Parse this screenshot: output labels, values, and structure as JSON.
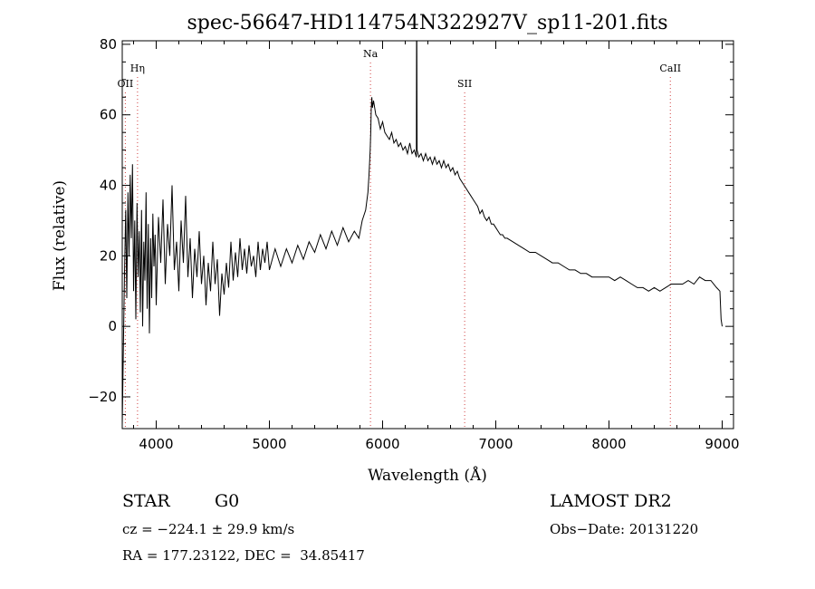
{
  "chart_data": {
    "type": "line",
    "title": "spec-56647-HD114754N322927V_sp11-201.fits",
    "xlabel": "Wavelength (Å)",
    "ylabel": "Flux (relative)",
    "xlim": [
      3700,
      9100
    ],
    "ylim": [
      -29,
      81
    ],
    "x_ticks": [
      4000,
      5000,
      6000,
      7000,
      8000,
      9000
    ],
    "x_tick_labels": [
      "4000",
      "5000",
      "6000",
      "7000",
      "8000",
      "9000"
    ],
    "y_ticks": [
      -20,
      0,
      20,
      40,
      60,
      80
    ],
    "y_tick_labels": [
      "−20",
      "0",
      "20",
      "40",
      "60",
      "80"
    ],
    "grid": false,
    "series": [
      {
        "color": "#000000",
        "points": [
          [
            3700,
            -28
          ],
          [
            3710,
            -5
          ],
          [
            3720,
            15
          ],
          [
            3730,
            33
          ],
          [
            3740,
            8
          ],
          [
            3750,
            38
          ],
          [
            3760,
            20
          ],
          [
            3770,
            43
          ],
          [
            3780,
            25
          ],
          [
            3790,
            46
          ],
          [
            3800,
            10
          ],
          [
            3810,
            30
          ],
          [
            3820,
            2
          ],
          [
            3830,
            35
          ],
          [
            3840,
            14
          ],
          [
            3850,
            27
          ],
          [
            3860,
            4
          ],
          [
            3870,
            33
          ],
          [
            3880,
            0
          ],
          [
            3890,
            24
          ],
          [
            3900,
            13
          ],
          [
            3910,
            38
          ],
          [
            3920,
            5
          ],
          [
            3930,
            29
          ],
          [
            3940,
            -2
          ],
          [
            3950,
            25
          ],
          [
            3960,
            8
          ],
          [
            3970,
            32
          ],
          [
            3980,
            17
          ],
          [
            3990,
            26
          ],
          [
            4000,
            6
          ],
          [
            4020,
            31
          ],
          [
            4040,
            18
          ],
          [
            4060,
            36
          ],
          [
            4080,
            12
          ],
          [
            4100,
            29
          ],
          [
            4120,
            20
          ],
          [
            4140,
            40
          ],
          [
            4160,
            16
          ],
          [
            4180,
            24
          ],
          [
            4200,
            10
          ],
          [
            4220,
            30
          ],
          [
            4240,
            18
          ],
          [
            4260,
            37
          ],
          [
            4280,
            14
          ],
          [
            4300,
            25
          ],
          [
            4320,
            8
          ],
          [
            4340,
            22
          ],
          [
            4360,
            14
          ],
          [
            4380,
            27
          ],
          [
            4400,
            12
          ],
          [
            4420,
            20
          ],
          [
            4440,
            6
          ],
          [
            4460,
            18
          ],
          [
            4480,
            10
          ],
          [
            4500,
            24
          ],
          [
            4520,
            12
          ],
          [
            4540,
            19
          ],
          [
            4560,
            3
          ],
          [
            4580,
            15
          ],
          [
            4600,
            9
          ],
          [
            4620,
            18
          ],
          [
            4640,
            11
          ],
          [
            4660,
            24
          ],
          [
            4680,
            13
          ],
          [
            4700,
            21
          ],
          [
            4720,
            14
          ],
          [
            4740,
            25
          ],
          [
            4760,
            16
          ],
          [
            4780,
            22
          ],
          [
            4800,
            15
          ],
          [
            4820,
            23
          ],
          [
            4840,
            17
          ],
          [
            4860,
            20
          ],
          [
            4880,
            14
          ],
          [
            4900,
            24
          ],
          [
            4920,
            16
          ],
          [
            4940,
            22
          ],
          [
            4960,
            18
          ],
          [
            4980,
            24
          ],
          [
            5000,
            16
          ],
          [
            5050,
            22
          ],
          [
            5100,
            17
          ],
          [
            5150,
            22
          ],
          [
            5200,
            18
          ],
          [
            5250,
            23
          ],
          [
            5300,
            19
          ],
          [
            5350,
            24
          ],
          [
            5400,
            21
          ],
          [
            5450,
            26
          ],
          [
            5500,
            22
          ],
          [
            5550,
            27
          ],
          [
            5600,
            23
          ],
          [
            5650,
            28
          ],
          [
            5700,
            24
          ],
          [
            5750,
            27
          ],
          [
            5790,
            25
          ],
          [
            5820,
            30
          ],
          [
            5850,
            33
          ],
          [
            5870,
            38
          ],
          [
            5880,
            43
          ],
          [
            5890,
            50
          ],
          [
            5895,
            55
          ],
          [
            5900,
            62
          ],
          [
            5905,
            65
          ],
          [
            5910,
            62
          ],
          [
            5920,
            64
          ],
          [
            5940,
            60
          ],
          [
            5960,
            59
          ],
          [
            5980,
            56
          ],
          [
            6000,
            58
          ],
          [
            6020,
            55
          ],
          [
            6040,
            54
          ],
          [
            6060,
            53
          ],
          [
            6080,
            55
          ],
          [
            6100,
            52
          ],
          [
            6120,
            53
          ],
          [
            6140,
            51
          ],
          [
            6160,
            52
          ],
          [
            6180,
            50
          ],
          [
            6200,
            51
          ],
          [
            6220,
            49
          ],
          [
            6240,
            52
          ],
          [
            6260,
            49
          ],
          [
            6280,
            50
          ],
          [
            6298,
            48
          ],
          [
            6300,
            81
          ],
          [
            6302,
            81
          ],
          [
            6305,
            50
          ],
          [
            6320,
            48
          ],
          [
            6340,
            49
          ],
          [
            6360,
            47
          ],
          [
            6380,
            49
          ],
          [
            6400,
            47
          ],
          [
            6420,
            48
          ],
          [
            6440,
            46
          ],
          [
            6460,
            48
          ],
          [
            6480,
            46
          ],
          [
            6500,
            47
          ],
          [
            6520,
            45
          ],
          [
            6540,
            47
          ],
          [
            6560,
            45
          ],
          [
            6580,
            46
          ],
          [
            6600,
            44
          ],
          [
            6620,
            45
          ],
          [
            6640,
            43
          ],
          [
            6660,
            44
          ],
          [
            6680,
            42
          ],
          [
            6700,
            41
          ],
          [
            6720,
            40
          ],
          [
            6740,
            39
          ],
          [
            6760,
            38
          ],
          [
            6780,
            37
          ],
          [
            6800,
            36
          ],
          [
            6820,
            35
          ],
          [
            6840,
            34
          ],
          [
            6860,
            32
          ],
          [
            6880,
            33
          ],
          [
            6900,
            31
          ],
          [
            6920,
            30
          ],
          [
            6940,
            31
          ],
          [
            6960,
            29
          ],
          [
            6980,
            29
          ],
          [
            7000,
            28
          ],
          [
            7020,
            27
          ],
          [
            7040,
            26
          ],
          [
            7060,
            26
          ],
          [
            7080,
            25
          ],
          [
            7100,
            25
          ],
          [
            7150,
            24
          ],
          [
            7200,
            23
          ],
          [
            7250,
            22
          ],
          [
            7300,
            21
          ],
          [
            7350,
            21
          ],
          [
            7400,
            20
          ],
          [
            7450,
            19
          ],
          [
            7500,
            18
          ],
          [
            7550,
            18
          ],
          [
            7600,
            17
          ],
          [
            7650,
            16
          ],
          [
            7700,
            16
          ],
          [
            7750,
            15
          ],
          [
            7800,
            15
          ],
          [
            7850,
            14
          ],
          [
            7900,
            14
          ],
          [
            7950,
            14
          ],
          [
            8000,
            14
          ],
          [
            8050,
            13
          ],
          [
            8100,
            14
          ],
          [
            8150,
            13
          ],
          [
            8200,
            12
          ],
          [
            8250,
            11
          ],
          [
            8300,
            11
          ],
          [
            8350,
            10
          ],
          [
            8400,
            11
          ],
          [
            8450,
            10
          ],
          [
            8500,
            11
          ],
          [
            8550,
            12
          ],
          [
            8600,
            12
          ],
          [
            8650,
            12
          ],
          [
            8700,
            13
          ],
          [
            8750,
            12
          ],
          [
            8800,
            14
          ],
          [
            8850,
            13
          ],
          [
            8900,
            13
          ],
          [
            8950,
            11
          ],
          [
            8980,
            10
          ],
          [
            8990,
            2
          ],
          [
            9000,
            0
          ]
        ]
      }
    ],
    "lines": [
      {
        "name": "Hη",
        "x": 3835
      },
      {
        "name": "OII",
        "x": 3727
      },
      {
        "name": "Na",
        "x": 5893
      },
      {
        "name": "SII",
        "x": 6725
      },
      {
        "name": "CaII",
        "x": 8542
      }
    ],
    "line_color": "#d04040"
  },
  "info": {
    "object_class": "STAR",
    "subclass": "G0",
    "survey": "LAMOST DR2",
    "cz": "cz = −224.1 ± 29.9 km/s",
    "obs_date": "Obs−Date: 20131220",
    "radec": "RA = 177.23122, DEC =  34.85417"
  }
}
